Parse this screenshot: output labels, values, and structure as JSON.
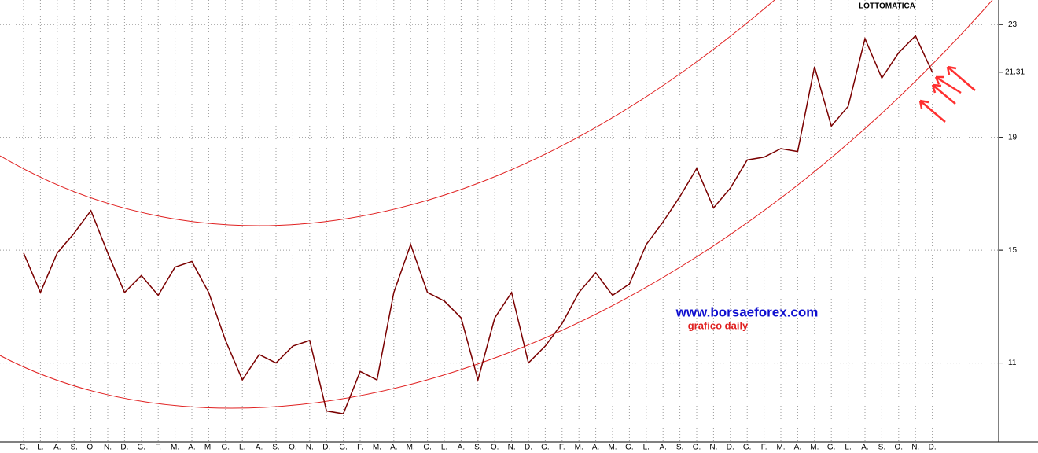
{
  "chart_data": {
    "type": "line",
    "title": "LOTTOMATICA",
    "watermark": "www.borsaeforex.com",
    "subtitle": "grafico daily",
    "categories": [
      "G.",
      "L.",
      "A.",
      "S.",
      "O.",
      "N.",
      "D.",
      "G.",
      "F.",
      "M.",
      "A.",
      "M.",
      "G.",
      "L.",
      "A.",
      "S.",
      "O.",
      "N.",
      "D.",
      "G.",
      "F.",
      "M.",
      "A.",
      "M.",
      "G.",
      "L.",
      "A.",
      "S.",
      "O.",
      "N.",
      "D.",
      "G.",
      "F.",
      "M.",
      "A.",
      "M.",
      "G.",
      "L.",
      "A.",
      "S.",
      "O.",
      "N.",
      "D.",
      "G.",
      "F.",
      "M.",
      "A.",
      "M.",
      "G.",
      "L.",
      "A.",
      "S.",
      "O.",
      "N.",
      "D."
    ],
    "series": [
      {
        "name": "LOTTOMATICA",
        "color": "#7a0000",
        "values": [
          14.9,
          13.5,
          14.9,
          15.6,
          16.4,
          14.9,
          13.5,
          14.1,
          13.4,
          14.4,
          14.6,
          13.5,
          11.8,
          10.4,
          11.3,
          11.0,
          11.6,
          11.8,
          9.3,
          9.2,
          10.7,
          10.4,
          13.5,
          15.2,
          13.5,
          13.2,
          12.6,
          10.4,
          12.6,
          13.5,
          11.0,
          11.6,
          12.4,
          13.5,
          14.2,
          13.4,
          13.8,
          15.2,
          16.0,
          16.9,
          17.9,
          16.5,
          17.2,
          18.2,
          18.3,
          18.6,
          18.5,
          21.5,
          19.4,
          20.1,
          22.5,
          21.1,
          22.0,
          22.6,
          21.31
        ]
      }
    ],
    "last_price": 21.31,
    "ylim": [
      8.2,
      23.87
    ],
    "yticks": [
      11,
      15,
      19,
      23
    ],
    "grid": true
  }
}
